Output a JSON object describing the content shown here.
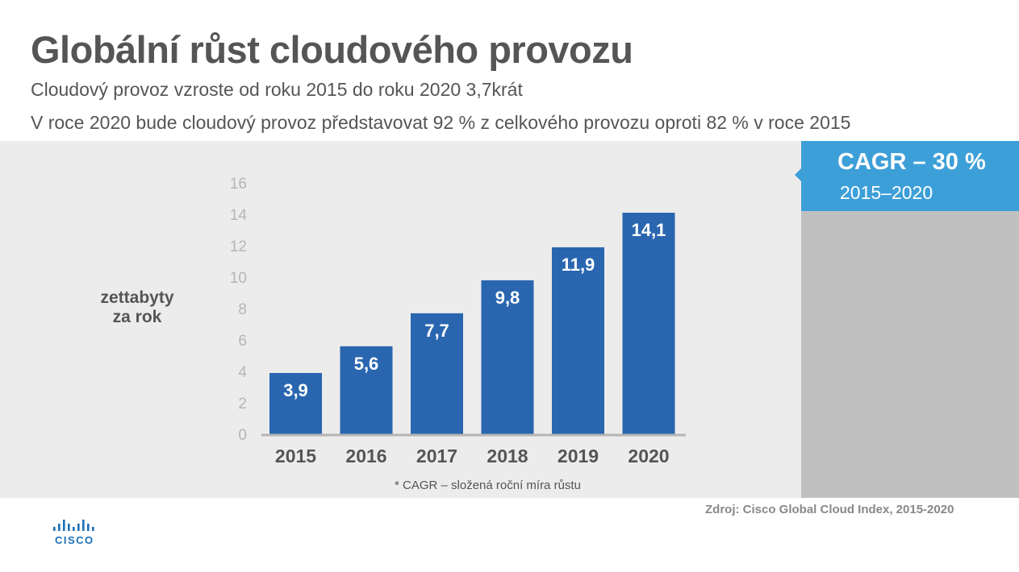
{
  "header": {
    "title": "Globální růst cloudového provozu",
    "subtitle_1": "Cloudový provoz vzroste od roku 2015 do roku 2020 3,7krát",
    "subtitle_2": "V roce 2020 bude cloudový provoz představovat 92 % z celkového provozu oproti 82 % v roce 2015"
  },
  "cagr": {
    "title": "CAGR – 30 %",
    "period": "2015–2020"
  },
  "chart_data": {
    "type": "bar",
    "categories": [
      "2015",
      "2016",
      "2017",
      "2018",
      "2019",
      "2020"
    ],
    "values": [
      3.9,
      5.6,
      7.7,
      9.8,
      11.9,
      14.1
    ],
    "value_labels": [
      "3,9",
      "5,6",
      "7,7",
      "9,8",
      "11,9",
      "14,1"
    ],
    "ylabel_lines": [
      "zettabyty",
      "za rok"
    ],
    "yticks": [
      0,
      2,
      4,
      6,
      8,
      10,
      12,
      14,
      16
    ],
    "ylim": [
      0,
      16
    ],
    "grid": false,
    "bar_color": "#2a66b0",
    "footnote": "* CAGR – složená roční míra růstu"
  },
  "footer": {
    "source": "Zdroj: Cisco Global Cloud Index, 2015-2020",
    "logo_text": "CISCO",
    "logo_color": "#1a6fb8"
  },
  "colors": {
    "panel": "#ececec",
    "side_panel": "#c0c0c0",
    "accent": "#3d9fd8",
    "text": "#555555"
  }
}
